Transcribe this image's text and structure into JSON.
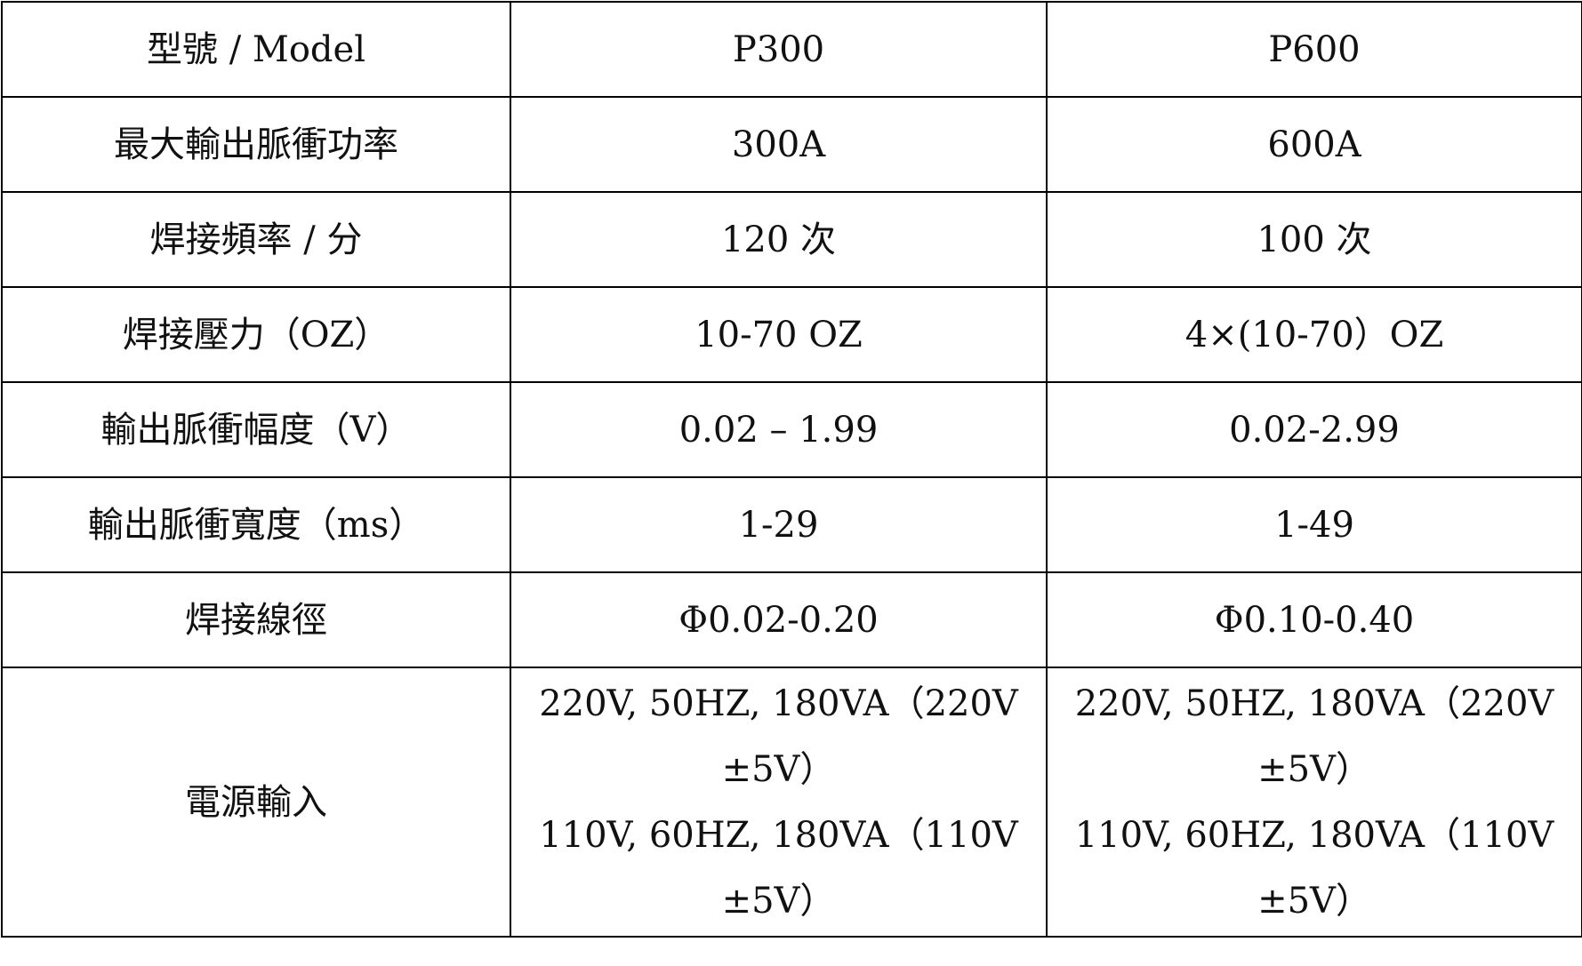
{
  "table": {
    "rows": [
      [
        "型號 / Model",
        "P300",
        "P600"
      ],
      [
        "最大輸出脈衝功率",
        "300A",
        "600A"
      ],
      [
        "焊接頻率 / 分",
        "120 次",
        "100 次"
      ],
      [
        "焊接壓力（OZ）",
        "10-70 OZ",
        "4×(10-70）OZ"
      ],
      [
        "輸出脈衝幅度（V）",
        "0.02 – 1.99",
        "0.02-2.99"
      ],
      [
        "輸出脈衝寬度（ms）",
        "1-29",
        "1-49"
      ],
      [
        "焊接線徑",
        "Φ0.02-0.20",
        "Φ0.10-0.40"
      ],
      [
        "電源輸入",
        [
          "220V, 50HZ, 180VA（220V ±5V）",
          "110V, 60HZ, 180VA（110V ±5V）"
        ],
        [
          "220V, 50HZ, 180VA（220V ±5V）",
          "110V, 60HZ, 180VA（110V ±5V）"
        ]
      ]
    ]
  }
}
